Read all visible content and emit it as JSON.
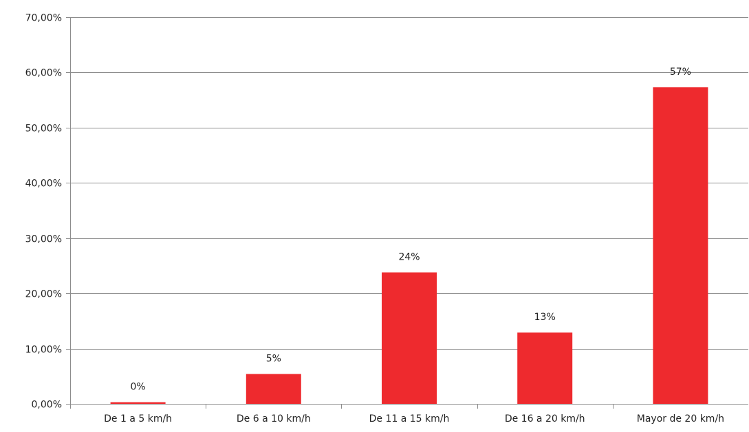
{
  "chart_data": {
    "type": "bar",
    "categories": [
      "De 1 a 5 km/h",
      "De 6 a 10 km/h",
      "De 11 a 15 km/h",
      "De 16 a 20 km/h",
      "Mayor de 20 km/h"
    ],
    "values": [
      0.3,
      5.4,
      23.8,
      12.9,
      57.3
    ],
    "data_labels": [
      "0%",
      "5%",
      "24%",
      "13%",
      "57%"
    ],
    "y_ticks": [
      0,
      10,
      20,
      30,
      40,
      50,
      60,
      70
    ],
    "y_tick_labels": [
      "0,00%",
      "10,00%",
      "20,00%",
      "30,00%",
      "40,00%",
      "50,00%",
      "60,00%",
      "70,00%"
    ],
    "ylim": [
      0,
      70
    ],
    "grid": true,
    "legend": "none",
    "bar_color": "#ee2a2e",
    "title": "",
    "xlabel": "",
    "ylabel": ""
  }
}
